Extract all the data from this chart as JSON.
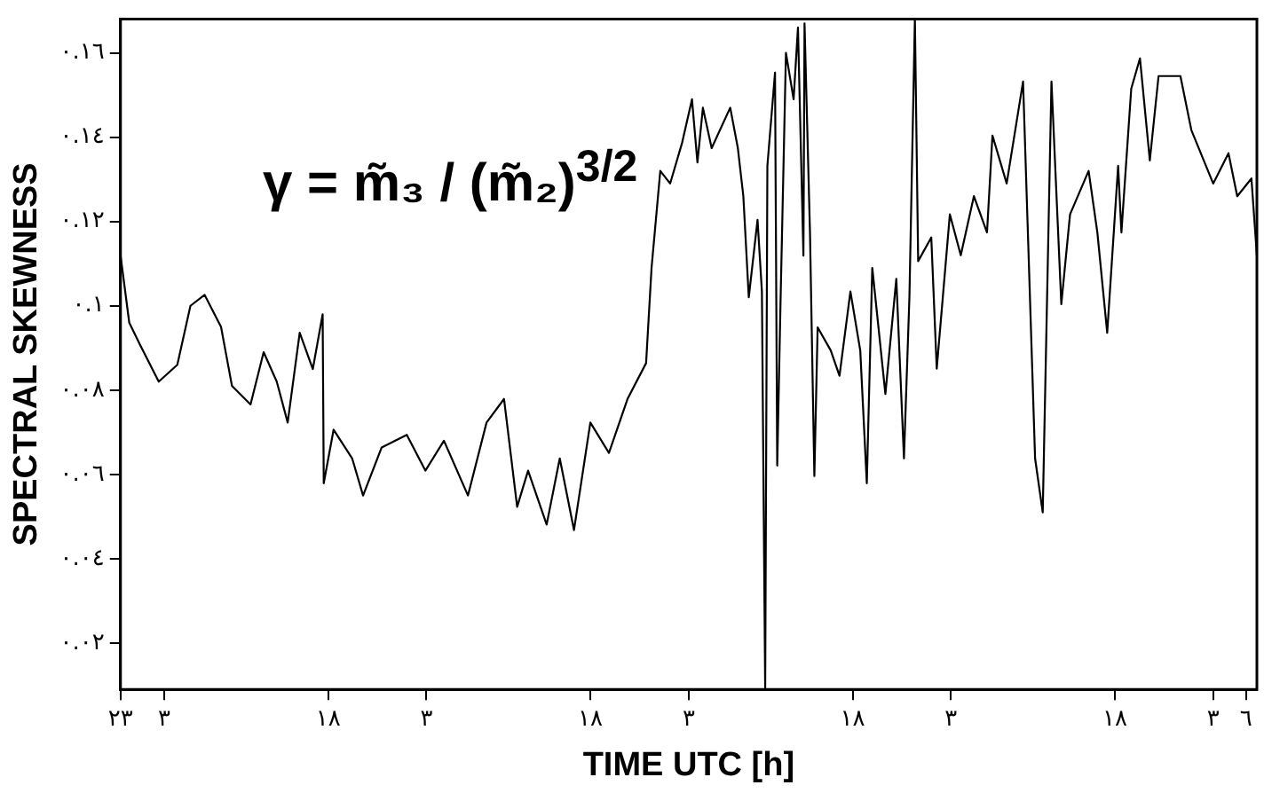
{
  "chart_data": {
    "type": "line",
    "xlabel": "TIME UTC [h]",
    "ylabel": "SPECTRAL SKEWNESS",
    "annotations": [
      "γ = m̃₃ / (m̃₂)$^{3/2}$"
    ],
    "xlim": [
      "--01-01T23:00",
      "--01-06T07:00"
    ],
    "ylim": [
      0.009,
      0.168
    ],
    "xticks": [
      {
        "value": "--01-01T23:00",
        "label": "٢٣"
      },
      {
        "value": "--01-02T03:00",
        "label": "٣"
      },
      {
        "value": "--01-02T18:00",
        "label": "١٨"
      },
      {
        "value": "--01-03T03:00",
        "label": "٣"
      },
      {
        "value": "--01-03T18:00",
        "label": "١٨"
      },
      {
        "value": "--01-04T03:00",
        "label": "٣"
      },
      {
        "value": "--01-04T18:00",
        "label": "١٨"
      },
      {
        "value": "--01-05T03:00",
        "label": "٣"
      },
      {
        "value": "--01-05T18:00",
        "label": "١٨"
      },
      {
        "value": "--01-06T03:00",
        "label": "٣"
      },
      {
        "value": "--01-06T06:00",
        "label": "٦"
      }
    ],
    "yticks": [
      {
        "value": 0.02,
        "label": "٠.٠٢"
      },
      {
        "value": 0.04,
        "label": "٠.٠٤"
      },
      {
        "value": 0.06,
        "label": "٠.٠٦"
      },
      {
        "value": 0.08,
        "label": "٠.٠٨"
      },
      {
        "value": 0.1,
        "label": "٠.١"
      },
      {
        "value": 0.12,
        "label": "٠.١٢"
      },
      {
        "value": 0.14,
        "label": "٠.١٤"
      },
      {
        "value": 0.16,
        "label": "٠.١٦"
      }
    ],
    "grid": false,
    "legend": false,
    "marker": "none",
    "line_style": "solid",
    "series": [
      {
        "color": "#000000",
        "x": [
          "--01-01T23:00",
          "--01-01T23:48",
          "--01-02T00:48",
          "--01-02T02:30",
          "--01-02T04:12",
          "--01-02T05:24",
          "--01-02T06:42",
          "--01-02T08:12",
          "--01-02T09:12",
          "--01-02T10:54",
          "--01-02T12:06",
          "--01-02T13:18",
          "--01-02T14:18",
          "--01-02T15:24",
          "--01-02T16:36",
          "--01-02T17:30",
          "--01-02T17:36",
          "--01-02T18:30",
          "--01-02T20:12",
          "--01-02T21:12",
          "--01-02T22:54",
          "--01-03T01:12",
          "--01-03T02:54",
          "--01-03T04:36",
          "--01-03T06:48",
          "--01-03T08:30",
          "--01-03T10:06",
          "--01-03T11:18",
          "--01-03T12:18",
          "--01-03T14:00",
          "--01-03T15:12",
          "--01-03T16:30",
          "--01-03T18:00",
          "--01-03T19:42",
          "--01-03T21:24",
          "--01-03T23:06",
          "--01-03T23:36",
          "--01-04T00:24",
          "--01-04T01:18",
          "--01-04T02:24",
          "--01-04T03:18",
          "--01-04T03:48",
          "--01-04T04:18",
          "--01-04T05:06",
          "--01-04T06:48",
          "--01-04T07:30",
          "--01-04T08:00",
          "--01-04T08:30",
          "--01-04T09:18",
          "--01-04T09:42",
          "--01-04T10:00",
          "--01-04T10:12",
          "--01-04T10:54",
          "--01-04T11:06",
          "--01-04T11:24",
          "--01-04T11:54",
          "--01-04T12:36",
          "--01-04T13:00",
          "--01-04T13:30",
          "--01-04T13:36",
          "--01-04T14:06",
          "--01-04T14:30",
          "--01-04T14:48",
          "--01-04T16:00",
          "--01-04T16:48",
          "--01-04T17:48",
          "--01-04T18:42",
          "--01-04T19:18",
          "--01-04T19:48",
          "--01-04T21:00",
          "--01-04T22:00",
          "--01-04T22:42",
          "--01-04T23:12",
          "--01-04T23:42",
          "--01-05T00:00",
          "--01-05T01:12",
          "--01-05T01:42",
          "--01-05T02:54",
          "--01-05T03:54",
          "--01-05T05:06",
          "--01-05T06:18",
          "--01-05T06:48",
          "--01-05T08:06",
          "--01-05T09:36",
          "--01-05T10:42",
          "--01-05T11:24",
          "--01-05T12:12",
          "--01-05T13:06",
          "--01-05T13:54",
          "--01-05T15:36",
          "--01-05T16:24",
          "--01-05T17:18",
          "--01-05T18:18",
          "--01-05T18:36",
          "--01-05T19:30",
          "--01-05T20:18",
          "--01-05T21:12",
          "--01-05T22:00",
          "--01-06T00:00",
          "--01-06T01:00",
          "--01-06T03:00",
          "--01-06T04:24",
          "--01-06T05:12",
          "--01-06T06:30",
          "--01-06T07:00"
        ],
        "values": [
          0.112,
          0.096,
          0.0907,
          0.082,
          0.086,
          0.1,
          0.1026,
          0.095,
          0.081,
          0.0766,
          0.089,
          0.082,
          0.0723,
          0.0936,
          0.085,
          0.098,
          0.0579,
          0.0706,
          0.0638,
          0.055,
          0.0664,
          0.0694,
          0.0609,
          0.068,
          0.055,
          0.0723,
          0.0779,
          0.0523,
          0.0609,
          0.0481,
          0.0638,
          0.0468,
          0.0723,
          0.0651,
          0.0779,
          0.0864,
          0.109,
          0.132,
          0.129,
          0.1387,
          0.149,
          0.134,
          0.147,
          0.1374,
          0.147,
          0.1374,
          0.126,
          0.102,
          0.1204,
          0.1034,
          0.009,
          0.1332,
          0.1553,
          0.0621,
          0.1004,
          0.16,
          0.149,
          0.166,
          0.1119,
          0.167,
          0.1174,
          0.0596,
          0.0949,
          0.0894,
          0.0834,
          0.1034,
          0.0894,
          0.0579,
          0.109,
          0.0791,
          0.1064,
          0.0638,
          0.1021,
          0.168,
          0.1106,
          0.1162,
          0.0851,
          0.1217,
          0.112,
          0.126,
          0.1174,
          0.1404,
          0.129,
          0.1532,
          0.0638,
          0.051,
          0.1532,
          0.1004,
          0.1217,
          0.132,
          0.1174,
          0.0936,
          0.1332,
          0.1174,
          0.1515,
          0.1587,
          0.1345,
          0.1545,
          0.1545,
          0.1417,
          0.129,
          0.1362,
          0.126,
          0.1302,
          0.1119
        ]
      }
    ]
  }
}
